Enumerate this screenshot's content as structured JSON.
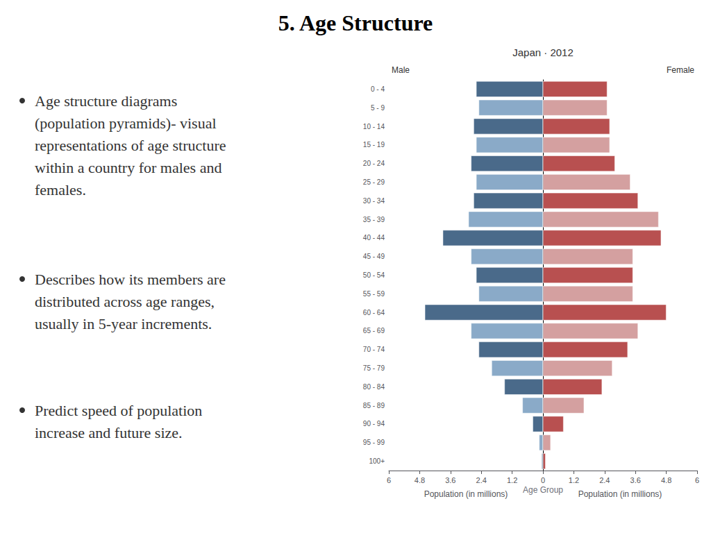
{
  "chart_data": {
    "type": "bar",
    "orientation": "horizontal",
    "title": "5. Age Structure",
    "subtitle": "Japan · 2012",
    "annotations": [
      "Age structure diagrams\n(population pyramids)- visual\nrepresentations of age structure\nwithin a country for males and\nfemales.",
      "Describes how its members are\ndistributed across age ranges,\nusually in 5-year increments.",
      "Predict speed of population\nincrease and future size."
    ],
    "xlabel": [
      "Population (in millions)",
      "Population (in millions)"
    ],
    "ylabel": "Age Group",
    "categories": [
      "100+",
      "95 - 99",
      "90 - 94",
      "85 - 89",
      "80 - 84",
      "75 - 79",
      "70 - 74",
      "65 - 69",
      "60 - 64",
      "55 - 59",
      "50 - 54",
      "45 - 49",
      "40 - 44",
      "35 - 39",
      "30 - 34",
      "25 - 29",
      "20 - 24",
      "15 - 19",
      "10 - 14",
      "5 - 9",
      "0 - 4"
    ],
    "series": [
      {
        "name": "Male",
        "colors": [
          "#4a6a8a",
          "#8aaac8",
          "#4a6a8a",
          "#8aaac8",
          "#4a6a8a",
          "#8aaac8",
          "#4a6a8a",
          "#8aaac8",
          "#4a6a8a",
          "#8aaac8",
          "#4a6a8a",
          "#8aaac8",
          "#4a6a8a",
          "#8aaac8",
          "#4a6a8a",
          "#8aaac8",
          "#4a6a8a",
          "#8aaac8",
          "#4a6a8a",
          "#8aaac8",
          "#4a6a8a"
        ],
        "values": [
          0.05,
          0.15,
          0.4,
          0.8,
          1.5,
          2.0,
          2.5,
          2.8,
          4.6,
          2.5,
          2.6,
          2.8,
          3.9,
          2.9,
          2.7,
          2.6,
          2.8,
          2.6,
          2.7,
          2.5,
          2.6
        ]
      },
      {
        "name": "Female",
        "colors": [
          "#b85050",
          "#d4a0a0",
          "#b85050",
          "#d4a0a0",
          "#b85050",
          "#d4a0a0",
          "#b85050",
          "#d4a0a0",
          "#b85050",
          "#d4a0a0",
          "#b85050",
          "#d4a0a0",
          "#b85050",
          "#d4a0a0",
          "#b85050",
          "#d4a0a0",
          "#b85050",
          "#d4a0a0",
          "#b85050",
          "#d4a0a0",
          "#b85050"
        ],
        "values": [
          0.1,
          0.3,
          0.8,
          1.6,
          2.3,
          2.7,
          3.3,
          3.7,
          4.8,
          3.5,
          3.5,
          3.5,
          4.6,
          4.5,
          3.7,
          3.4,
          2.8,
          2.6,
          2.6,
          2.5,
          2.5
        ]
      }
    ],
    "xlim": [
      0,
      6
    ],
    "xticks": [
      0,
      1.2,
      2.4,
      3.6,
      4.8,
      6
    ],
    "grid": false
  }
}
